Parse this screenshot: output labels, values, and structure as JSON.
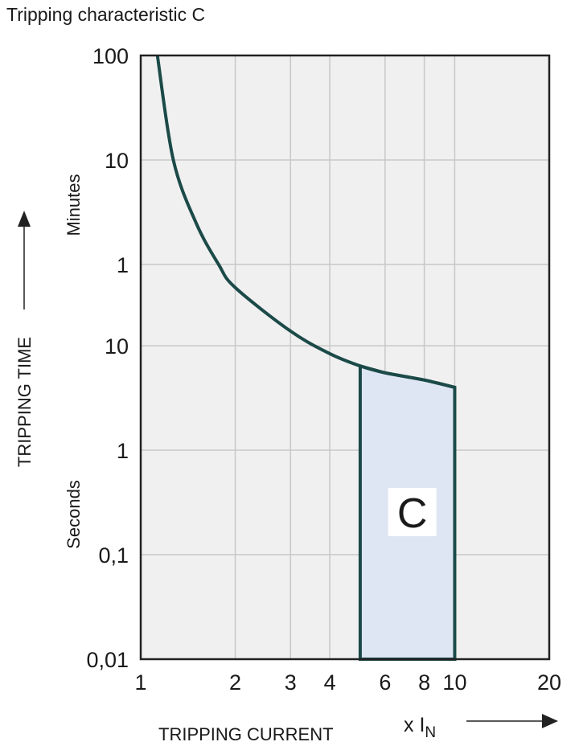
{
  "chart_data": {
    "type": "line",
    "title": "Tripping characteristic C",
    "xlabel": "TRIPPING CURRENT",
    "xunit": "x I",
    "xunit_sub": "N",
    "ylabel": "TRIPPING TIME",
    "y_unit_labels": {
      "minutes": "Minutes",
      "seconds": "Seconds"
    },
    "x_scale": "log",
    "y_scale": "log",
    "xlim": [
      1,
      20
    ],
    "ylim_seconds": [
      0.01,
      6000
    ],
    "grid": true,
    "x_ticks": [
      {
        "value": 1,
        "label": "1"
      },
      {
        "value": 2,
        "label": "2"
      },
      {
        "value": 3,
        "label": "3"
      },
      {
        "value": 4,
        "label": "4"
      },
      {
        "value": 6,
        "label": "6"
      },
      {
        "value": 8,
        "label": "8"
      },
      {
        "value": 10,
        "label": "10"
      },
      {
        "value": 20,
        "label": "20"
      }
    ],
    "y_ticks": [
      {
        "seconds": 6000,
        "label": "100"
      },
      {
        "seconds": 600,
        "label": "10"
      },
      {
        "seconds": 60,
        "label": "1"
      },
      {
        "seconds": 10,
        "label": "10"
      },
      {
        "seconds": 1,
        "label": "1"
      },
      {
        "seconds": 0.1,
        "label": "0,1"
      },
      {
        "seconds": 0.01,
        "label": "0,01"
      }
    ],
    "curve": {
      "x": [
        1.13,
        1.27,
        1.5,
        1.77,
        2,
        3,
        4,
        5,
        6,
        8,
        10
      ],
      "seconds": [
        6000,
        600,
        150,
        60,
        36,
        13.8,
        8.4,
        6.4,
        5.5,
        4.7,
        4.0
      ]
    },
    "region": {
      "label": "C",
      "x_from": 5,
      "x_to": 10,
      "seconds_bottom": 0.01
    },
    "colors": {
      "curve": "#1b4a48",
      "region_fill": "#dfe6f3",
      "plot_bg": "#f0f0f0",
      "grid": "#c8c8c8"
    }
  }
}
